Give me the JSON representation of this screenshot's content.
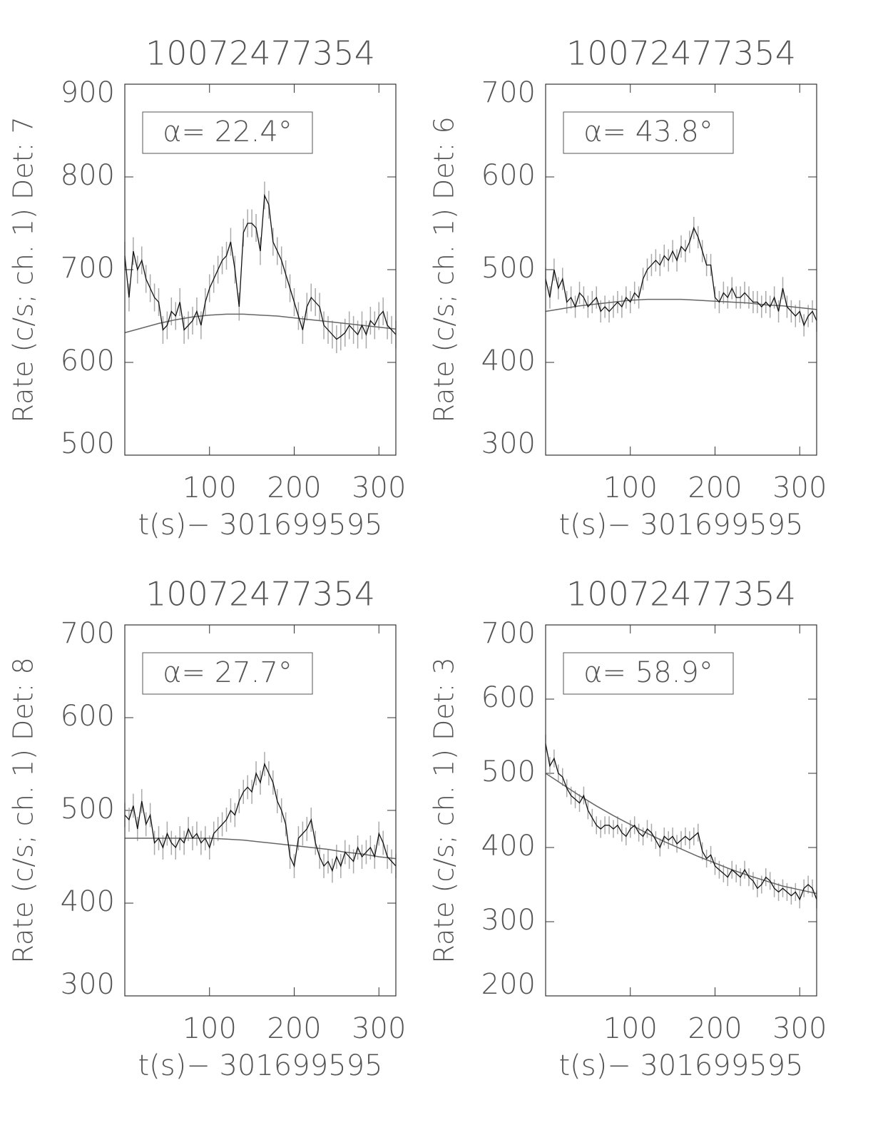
{
  "chart_data": [
    {
      "type": "line",
      "title": "10072477354",
      "ylabel": "Rate (c/s; ch. 1) Det: 7",
      "xlabel": "t(s)− 301699595",
      "annotation": "α= 22.4°",
      "x": [
        0,
        5,
        10,
        15,
        20,
        25,
        30,
        35,
        40,
        45,
        50,
        55,
        60,
        65,
        70,
        75,
        80,
        85,
        90,
        95,
        100,
        105,
        110,
        115,
        120,
        125,
        130,
        135,
        140,
        145,
        150,
        155,
        160,
        165,
        170,
        175,
        180,
        185,
        190,
        195,
        200,
        205,
        210,
        215,
        220,
        225,
        230,
        235,
        240,
        245,
        250,
        255,
        260,
        265,
        270,
        275,
        280,
        285,
        290,
        295,
        300,
        305,
        310,
        315,
        320
      ],
      "values": [
        715,
        670,
        720,
        700,
        710,
        690,
        680,
        670,
        665,
        635,
        640,
        655,
        650,
        665,
        635,
        640,
        645,
        655,
        640,
        665,
        680,
        690,
        700,
        710,
        715,
        730,
        700,
        660,
        740,
        750,
        750,
        745,
        720,
        780,
        770,
        730,
        720,
        710,
        695,
        680,
        665,
        650,
        635,
        660,
        670,
        665,
        660,
        640,
        635,
        630,
        625,
        628,
        632,
        640,
        635,
        630,
        640,
        630,
        645,
        640,
        650,
        655,
        640,
        635,
        630
      ],
      "error": 15,
      "fit_x": [
        0,
        20,
        40,
        60,
        80,
        100,
        120,
        140,
        160,
        180,
        200,
        220,
        240,
        260,
        280,
        300,
        320
      ],
      "fit": [
        632,
        637,
        642,
        646,
        649,
        651,
        652,
        652,
        651,
        650,
        648,
        646,
        644,
        642,
        640,
        638,
        636
      ],
      "xlim": [
        0,
        320
      ],
      "xticks": [
        100,
        200,
        300
      ],
      "ylim": [
        500,
        900
      ],
      "yticks": [
        500,
        600,
        700,
        800,
        900
      ]
    },
    {
      "type": "line",
      "title": "10072477354",
      "ylabel": "Rate (c/s; ch. 1) Det: 6",
      "xlabel": "t(s)− 301699595",
      "annotation": "α= 43.8°",
      "x": [
        0,
        5,
        10,
        15,
        20,
        25,
        30,
        35,
        40,
        45,
        50,
        55,
        60,
        65,
        70,
        75,
        80,
        85,
        90,
        95,
        100,
        105,
        110,
        115,
        120,
        125,
        130,
        135,
        140,
        145,
        150,
        155,
        160,
        165,
        170,
        175,
        180,
        185,
        190,
        195,
        200,
        205,
        210,
        215,
        220,
        225,
        230,
        235,
        240,
        245,
        250,
        255,
        260,
        265,
        270,
        275,
        280,
        285,
        290,
        295,
        300,
        305,
        310,
        315,
        320
      ],
      "values": [
        490,
        470,
        500,
        480,
        490,
        465,
        470,
        460,
        475,
        470,
        460,
        465,
        470,
        455,
        460,
        455,
        460,
        465,
        460,
        470,
        465,
        475,
        470,
        490,
        500,
        505,
        510,
        505,
        515,
        510,
        520,
        510,
        525,
        520,
        530,
        545,
        535,
        520,
        505,
        505,
        470,
        465,
        475,
        470,
        480,
        470,
        470,
        475,
        470,
        465,
        465,
        460,
        465,
        460,
        470,
        455,
        480,
        460,
        455,
        450,
        455,
        440,
        450,
        455,
        445
      ],
      "error": 12,
      "fit_x": [
        0,
        20,
        40,
        60,
        80,
        100,
        120,
        140,
        160,
        180,
        200,
        220,
        240,
        260,
        280,
        300,
        320
      ],
      "fit": [
        455,
        458,
        461,
        463,
        465,
        467,
        468,
        468,
        468,
        467,
        466,
        465,
        464,
        462,
        461,
        459,
        457
      ],
      "xlim": [
        0,
        320
      ],
      "xticks": [
        100,
        200,
        300
      ],
      "ylim": [
        300,
        700
      ],
      "yticks": [
        300,
        400,
        500,
        600,
        700
      ]
    },
    {
      "type": "line",
      "title": "10072477354",
      "ylabel": "Rate (c/s; ch. 1) Det: 8",
      "xlabel": "t(s)− 301699595",
      "annotation": "α= 27.7°",
      "x": [
        0,
        5,
        10,
        15,
        20,
        25,
        30,
        35,
        40,
        45,
        50,
        55,
        60,
        65,
        70,
        75,
        80,
        85,
        90,
        95,
        100,
        105,
        110,
        115,
        120,
        125,
        130,
        135,
        140,
        145,
        150,
        155,
        160,
        165,
        170,
        175,
        180,
        185,
        190,
        195,
        200,
        205,
        210,
        215,
        220,
        225,
        230,
        235,
        240,
        245,
        250,
        255,
        260,
        265,
        270,
        275,
        280,
        285,
        290,
        295,
        300,
        305,
        310,
        315,
        320
      ],
      "values": [
        495,
        490,
        505,
        480,
        510,
        485,
        495,
        465,
        470,
        460,
        475,
        465,
        460,
        470,
        465,
        480,
        470,
        475,
        465,
        470,
        460,
        475,
        480,
        485,
        490,
        500,
        495,
        510,
        520,
        525,
        520,
        540,
        530,
        550,
        540,
        530,
        510,
        500,
        485,
        450,
        440,
        470,
        475,
        480,
        490,
        465,
        450,
        440,
        445,
        435,
        450,
        440,
        455,
        450,
        445,
        460,
        450,
        455,
        460,
        450,
        475,
        465,
        450,
        445,
        440
      ],
      "error": 13,
      "fit_x": [
        0,
        20,
        40,
        60,
        80,
        100,
        120,
        140,
        160,
        180,
        200,
        220,
        240,
        260,
        280,
        300,
        320
      ],
      "fit": [
        470,
        470,
        470,
        470,
        470,
        470,
        469,
        468,
        466,
        464,
        462,
        460,
        458,
        455,
        453,
        450,
        448
      ],
      "xlim": [
        0,
        320
      ],
      "xticks": [
        100,
        200,
        300
      ],
      "ylim": [
        300,
        700
      ],
      "yticks": [
        300,
        400,
        500,
        600,
        700
      ]
    },
    {
      "type": "line",
      "title": "10072477354",
      "ylabel": "Rate (c/s; ch. 1) Det: 3",
      "xlabel": "t(s)− 301699595",
      "annotation": "α= 58.9°",
      "x": [
        0,
        5,
        10,
        15,
        20,
        25,
        30,
        35,
        40,
        45,
        50,
        55,
        60,
        65,
        70,
        75,
        80,
        85,
        90,
        95,
        100,
        105,
        110,
        115,
        120,
        125,
        130,
        135,
        140,
        145,
        150,
        155,
        160,
        165,
        170,
        175,
        180,
        185,
        190,
        195,
        200,
        205,
        210,
        215,
        220,
        225,
        230,
        235,
        240,
        245,
        250,
        255,
        260,
        265,
        270,
        275,
        280,
        285,
        290,
        295,
        300,
        305,
        310,
        315,
        320
      ],
      "values": [
        540,
        510,
        520,
        500,
        495,
        480,
        470,
        465,
        460,
        470,
        450,
        440,
        430,
        425,
        430,
        430,
        425,
        430,
        420,
        415,
        425,
        430,
        420,
        415,
        425,
        420,
        410,
        400,
        415,
        410,
        415,
        405,
        410,
        415,
        410,
        415,
        420,
        395,
        385,
        390,
        375,
        370,
        365,
        360,
        370,
        365,
        360,
        370,
        360,
        355,
        345,
        350,
        360,
        355,
        345,
        340,
        345,
        340,
        335,
        340,
        330,
        345,
        350,
        345,
        330
      ],
      "error": 12,
      "fit_x": [
        0,
        20,
        40,
        60,
        80,
        100,
        120,
        140,
        160,
        180,
        200,
        220,
        240,
        260,
        280,
        300,
        320
      ],
      "fit": [
        500,
        485,
        470,
        456,
        443,
        431,
        419,
        408,
        398,
        388,
        379,
        370,
        362,
        355,
        348,
        343,
        338
      ],
      "xlim": [
        0,
        320
      ],
      "xticks": [
        100,
        200,
        300
      ],
      "ylim": [
        200,
        700
      ],
      "yticks": [
        200,
        300,
        400,
        500,
        600,
        700
      ]
    }
  ]
}
